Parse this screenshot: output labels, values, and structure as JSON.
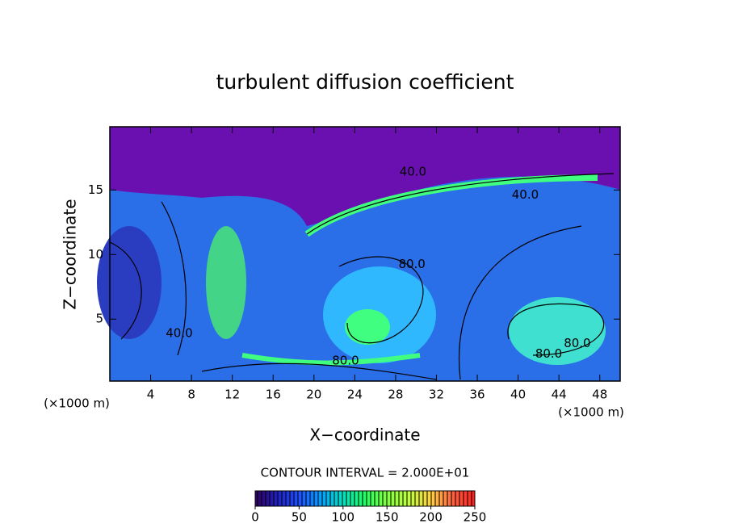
{
  "chart_data": {
    "type": "contour",
    "title": "turbulent diffusion coefficient",
    "x_label": "X−coordinate",
    "y_label": "Z−coordinate",
    "x_unit_label": "(×1000 m)",
    "y_unit_label": "(×1000 m)",
    "contour_interval_label": "CONTOUR INTERVAL = 2.000E+01",
    "xlim": [
      0,
      50
    ],
    "ylim": [
      0.2,
      19.9
    ],
    "xticks": [
      4,
      8,
      12,
      16,
      20,
      24,
      28,
      32,
      36,
      40,
      44,
      48
    ],
    "yticks": [
      5,
      10,
      15
    ],
    "contour_labels": [
      {
        "x": 29.7,
        "y": 16.4,
        "value": 40,
        "label": "40.0"
      },
      {
        "x": 40.7,
        "y": 14.6,
        "value": 40,
        "label": "40.0"
      },
      {
        "x": 6.8,
        "y": 3.9,
        "value": 40,
        "label": "40.0"
      },
      {
        "x": 29.6,
        "y": 9.25,
        "value": 80,
        "label": "80.0"
      },
      {
        "x": 23.1,
        "y": 1.75,
        "value": 80,
        "label": "80.0"
      },
      {
        "x": 43.0,
        "y": 2.3,
        "value": 80,
        "label": "80.0"
      },
      {
        "x": 45.8,
        "y": 3.1,
        "value": 80,
        "label": "80.0"
      }
    ],
    "clim": [
      0,
      250
    ],
    "cticks": [
      0,
      50,
      100,
      150,
      200,
      250
    ],
    "colormap": [
      "#300060",
      "#2020c0",
      "#2050ff",
      "#00a0ff",
      "#00e0c0",
      "#20ff60",
      "#80ff40",
      "#c0ff40",
      "#ffd040",
      "#ff6040",
      "#ff2020"
    ]
  }
}
